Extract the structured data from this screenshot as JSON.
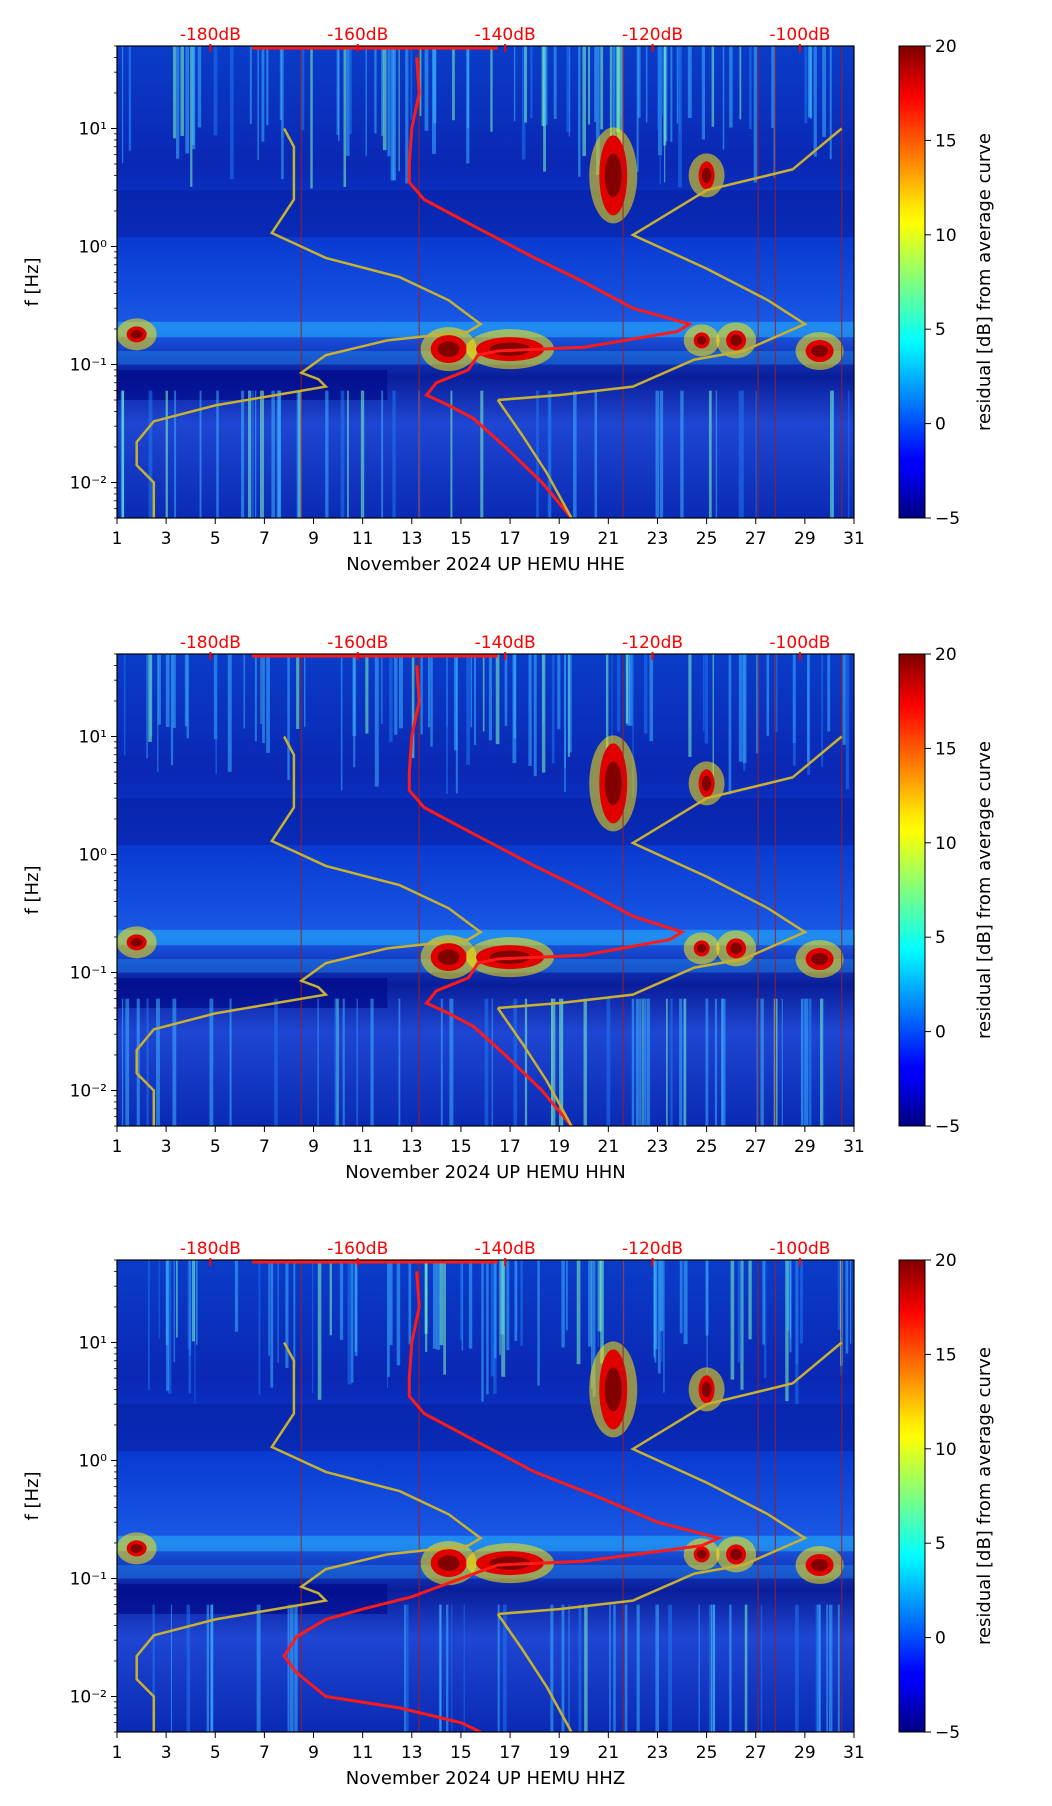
{
  "colors": {
    "red_curve": "#ff1a1a",
    "yellow_curve": "#c8b030",
    "db_label": "#ff0000",
    "axis": "#000000"
  },
  "chart_data": [
    {
      "type": "heatmap",
      "title": "",
      "xlabel": "November 2024 UP HEMU  HHE",
      "ylabel": "f [Hz]",
      "colorbar_label": "residual [dB] from average curve",
      "xlim": [
        1,
        31
      ],
      "ylim_hz": [
        0.005,
        50
      ],
      "yscale": "log",
      "x_ticks": [
        "1",
        "3",
        "5",
        "7",
        "9",
        "11",
        "13",
        "15",
        "17",
        "19",
        "21",
        "23",
        "25",
        "27",
        "29",
        "31"
      ],
      "y_ticks": [
        {
          "value": 0.01,
          "label": "10⁻²"
        },
        {
          "value": 0.1,
          "label": "10⁻¹"
        },
        {
          "value": 1,
          "label": "10⁰"
        },
        {
          "value": 10,
          "label": "10¹"
        }
      ],
      "db_ticks": [
        {
          "value": -180,
          "label": "-180dB"
        },
        {
          "value": -160,
          "label": "-160dB"
        },
        {
          "value": -140,
          "label": "-140dB"
        },
        {
          "value": -120,
          "label": "-120dB"
        },
        {
          "value": -100,
          "label": "-100dB"
        }
      ],
      "colorbar_ticks": [
        {
          "value": 20,
          "label": "20"
        },
        {
          "value": 15,
          "label": "15"
        },
        {
          "value": 10,
          "label": "10"
        },
        {
          "value": 5,
          "label": "5"
        },
        {
          "value": 0,
          "label": "0"
        },
        {
          "value": -5,
          "label": "−5"
        }
      ],
      "colorbar_range": [
        -5,
        20
      ],
      "series": [
        {
          "name": "average PSD curve",
          "color": "red",
          "points_day_hz": [
            [
              13.2,
              40
            ],
            [
              13.3,
              20
            ],
            [
              13.0,
              10
            ],
            [
              12.9,
              5
            ],
            [
              12.9,
              3.5
            ],
            [
              13.5,
              2.5
            ],
            [
              15.5,
              1.5
            ],
            [
              18.0,
              0.8
            ],
            [
              20.0,
              0.5
            ],
            [
              22.0,
              0.3
            ],
            [
              24.3,
              0.22
            ],
            [
              23.8,
              0.19
            ],
            [
              20.0,
              0.14
            ],
            [
              16.5,
              0.13
            ],
            [
              15.7,
              0.12
            ],
            [
              15.3,
              0.09
            ],
            [
              14.0,
              0.07
            ],
            [
              13.6,
              0.055
            ],
            [
              14.5,
              0.045
            ],
            [
              15.5,
              0.035
            ],
            [
              16.8,
              0.02
            ],
            [
              18.3,
              0.01
            ],
            [
              19.5,
              0.005
            ]
          ]
        },
        {
          "name": "low noise model",
          "color": "yellow",
          "points_day_hz": [
            [
              7.8,
              10
            ],
            [
              8.2,
              7
            ],
            [
              8.2,
              2.5
            ],
            [
              7.3,
              1.3
            ],
            [
              9.5,
              0.8
            ],
            [
              12.5,
              0.55
            ],
            [
              14.5,
              0.35
            ],
            [
              15.8,
              0.22
            ],
            [
              15.3,
              0.19
            ],
            [
              12.0,
              0.16
            ],
            [
              9.5,
              0.12
            ],
            [
              8.5,
              0.085
            ],
            [
              9.2,
              0.075
            ],
            [
              9.5,
              0.065
            ],
            [
              5.0,
              0.045
            ],
            [
              2.5,
              0.033
            ],
            [
              1.8,
              0.022
            ],
            [
              1.8,
              0.014
            ],
            [
              2.5,
              0.01
            ],
            [
              2.5,
              0.005
            ]
          ]
        },
        {
          "name": "high noise model",
          "color": "yellow",
          "points_day_hz": [
            [
              16.5,
              0.05
            ],
            [
              19.0,
              0.055
            ],
            [
              22.0,
              0.065
            ],
            [
              24.5,
              0.11
            ],
            [
              26.5,
              0.13
            ],
            [
              29.0,
              0.22
            ],
            [
              27.5,
              0.35
            ],
            [
              25.0,
              0.65
            ],
            [
              22.0,
              1.25
            ],
            [
              25.0,
              3.0
            ],
            [
              28.5,
              4.5
            ],
            [
              30.5,
              10
            ]
          ]
        },
        {
          "name": "low noise model tail",
          "color": "yellow",
          "points_day_hz": [
            [
              16.5,
              0.05
            ],
            [
              17.5,
              0.025
            ],
            [
              18.5,
              0.012
            ],
            [
              19.5,
              0.005
            ]
          ]
        }
      ]
    },
    {
      "type": "heatmap",
      "title": "",
      "xlabel": "November 2024 UP HEMU  HHN",
      "ylabel": "f [Hz]",
      "colorbar_label": "residual [dB] from average curve",
      "xlim": [
        1,
        31
      ],
      "ylim_hz": [
        0.005,
        50
      ],
      "yscale": "log",
      "x_ticks": [
        "1",
        "3",
        "5",
        "7",
        "9",
        "11",
        "13",
        "15",
        "17",
        "19",
        "21",
        "23",
        "25",
        "27",
        "29",
        "31"
      ],
      "y_ticks": [
        {
          "value": 0.01,
          "label": "10⁻²"
        },
        {
          "value": 0.1,
          "label": "10⁻¹"
        },
        {
          "value": 1,
          "label": "10⁰"
        },
        {
          "value": 10,
          "label": "10¹"
        }
      ],
      "db_ticks": [
        {
          "value": -180,
          "label": "-180dB"
        },
        {
          "value": -160,
          "label": "-160dB"
        },
        {
          "value": -140,
          "label": "-140dB"
        },
        {
          "value": -120,
          "label": "-120dB"
        },
        {
          "value": -100,
          "label": "-100dB"
        }
      ],
      "colorbar_ticks": [
        {
          "value": 20,
          "label": "20"
        },
        {
          "value": 15,
          "label": "15"
        },
        {
          "value": 10,
          "label": "10"
        },
        {
          "value": 5,
          "label": "5"
        },
        {
          "value": 0,
          "label": "0"
        },
        {
          "value": -5,
          "label": "−5"
        }
      ],
      "colorbar_range": [
        -5,
        20
      ],
      "series": [
        {
          "name": "average PSD curve",
          "color": "red",
          "points_day_hz": [
            [
              13.2,
              40
            ],
            [
              13.3,
              20
            ],
            [
              13.0,
              10
            ],
            [
              12.9,
              5
            ],
            [
              12.9,
              3.5
            ],
            [
              13.5,
              2.5
            ],
            [
              15.5,
              1.5
            ],
            [
              18.0,
              0.8
            ],
            [
              20.0,
              0.5
            ],
            [
              22.0,
              0.3
            ],
            [
              24.0,
              0.22
            ],
            [
              23.5,
              0.19
            ],
            [
              20.0,
              0.14
            ],
            [
              16.5,
              0.13
            ],
            [
              15.7,
              0.12
            ],
            [
              15.3,
              0.09
            ],
            [
              14.0,
              0.07
            ],
            [
              13.6,
              0.055
            ],
            [
              14.5,
              0.045
            ],
            [
              15.5,
              0.035
            ],
            [
              16.8,
              0.02
            ],
            [
              18.3,
              0.01
            ],
            [
              19.5,
              0.005
            ]
          ]
        },
        {
          "name": "low noise model",
          "color": "yellow",
          "points_day_hz": [
            [
              7.8,
              10
            ],
            [
              8.2,
              7
            ],
            [
              8.2,
              2.5
            ],
            [
              7.3,
              1.3
            ],
            [
              9.5,
              0.8
            ],
            [
              12.5,
              0.55
            ],
            [
              14.5,
              0.35
            ],
            [
              15.8,
              0.22
            ],
            [
              15.3,
              0.19
            ],
            [
              12.0,
              0.16
            ],
            [
              9.5,
              0.12
            ],
            [
              8.5,
              0.085
            ],
            [
              9.2,
              0.075
            ],
            [
              9.5,
              0.065
            ],
            [
              5.0,
              0.045
            ],
            [
              2.5,
              0.033
            ],
            [
              1.8,
              0.022
            ],
            [
              1.8,
              0.014
            ],
            [
              2.5,
              0.01
            ],
            [
              2.5,
              0.005
            ]
          ]
        },
        {
          "name": "high noise model",
          "color": "yellow",
          "points_day_hz": [
            [
              16.5,
              0.05
            ],
            [
              19.0,
              0.055
            ],
            [
              22.0,
              0.065
            ],
            [
              24.5,
              0.11
            ],
            [
              26.5,
              0.13
            ],
            [
              29.0,
              0.22
            ],
            [
              27.5,
              0.35
            ],
            [
              25.0,
              0.65
            ],
            [
              22.0,
              1.25
            ],
            [
              25.0,
              3.0
            ],
            [
              28.5,
              4.5
            ],
            [
              30.5,
              10
            ]
          ]
        },
        {
          "name": "low noise model tail",
          "color": "yellow",
          "points_day_hz": [
            [
              16.5,
              0.05
            ],
            [
              17.5,
              0.025
            ],
            [
              18.5,
              0.012
            ],
            [
              19.5,
              0.005
            ]
          ]
        }
      ]
    },
    {
      "type": "heatmap",
      "title": "",
      "xlabel": "November 2024 UP HEMU  HHZ",
      "ylabel": "f [Hz]",
      "colorbar_label": "residual [dB] from average curve",
      "xlim": [
        1,
        31
      ],
      "ylim_hz": [
        0.005,
        50
      ],
      "yscale": "log",
      "x_ticks": [
        "1",
        "3",
        "5",
        "7",
        "9",
        "11",
        "13",
        "15",
        "17",
        "19",
        "21",
        "23",
        "25",
        "27",
        "29",
        "31"
      ],
      "y_ticks": [
        {
          "value": 0.01,
          "label": "10⁻²"
        },
        {
          "value": 0.1,
          "label": "10⁻¹"
        },
        {
          "value": 1,
          "label": "10⁰"
        },
        {
          "value": 10,
          "label": "10¹"
        }
      ],
      "db_ticks": [
        {
          "value": -180,
          "label": "-180dB"
        },
        {
          "value": -160,
          "label": "-160dB"
        },
        {
          "value": -140,
          "label": "-140dB"
        },
        {
          "value": -120,
          "label": "-120dB"
        },
        {
          "value": -100,
          "label": "-100dB"
        }
      ],
      "colorbar_ticks": [
        {
          "value": 20,
          "label": "20"
        },
        {
          "value": 15,
          "label": "15"
        },
        {
          "value": 10,
          "label": "10"
        },
        {
          "value": 5,
          "label": "5"
        },
        {
          "value": 0,
          "label": "0"
        },
        {
          "value": -5,
          "label": "−5"
        }
      ],
      "colorbar_range": [
        -5,
        20
      ],
      "series": [
        {
          "name": "average PSD curve",
          "color": "red",
          "points_day_hz": [
            [
              13.2,
              40
            ],
            [
              13.3,
              20
            ],
            [
              13.0,
              10
            ],
            [
              12.9,
              5
            ],
            [
              12.9,
              3.5
            ],
            [
              13.5,
              2.5
            ],
            [
              15.5,
              1.5
            ],
            [
              18.0,
              0.8
            ],
            [
              20.5,
              0.5
            ],
            [
              23.0,
              0.3
            ],
            [
              25.5,
              0.22
            ],
            [
              24.8,
              0.19
            ],
            [
              20.0,
              0.14
            ],
            [
              16.5,
              0.13
            ],
            [
              15.0,
              0.1
            ],
            [
              13.0,
              0.07
            ],
            [
              11.0,
              0.055
            ],
            [
              9.5,
              0.045
            ],
            [
              8.3,
              0.032
            ],
            [
              7.8,
              0.022
            ],
            [
              8.3,
              0.016
            ],
            [
              9.5,
              0.01
            ],
            [
              12.5,
              0.008
            ],
            [
              15.0,
              0.006
            ],
            [
              15.8,
              0.005
            ]
          ]
        },
        {
          "name": "low noise model",
          "color": "yellow",
          "points_day_hz": [
            [
              7.8,
              10
            ],
            [
              8.2,
              7
            ],
            [
              8.2,
              2.5
            ],
            [
              7.3,
              1.3
            ],
            [
              9.5,
              0.8
            ],
            [
              12.5,
              0.55
            ],
            [
              14.5,
              0.35
            ],
            [
              15.8,
              0.22
            ],
            [
              15.3,
              0.19
            ],
            [
              12.0,
              0.16
            ],
            [
              9.5,
              0.12
            ],
            [
              8.5,
              0.085
            ],
            [
              9.2,
              0.075
            ],
            [
              9.5,
              0.065
            ],
            [
              5.0,
              0.045
            ],
            [
              2.5,
              0.033
            ],
            [
              1.8,
              0.022
            ],
            [
              1.8,
              0.014
            ],
            [
              2.5,
              0.01
            ],
            [
              2.5,
              0.005
            ]
          ]
        },
        {
          "name": "high noise model",
          "color": "yellow",
          "points_day_hz": [
            [
              16.5,
              0.05
            ],
            [
              19.0,
              0.055
            ],
            [
              22.0,
              0.065
            ],
            [
              24.5,
              0.11
            ],
            [
              26.5,
              0.13
            ],
            [
              29.0,
              0.22
            ],
            [
              27.5,
              0.35
            ],
            [
              25.0,
              0.65
            ],
            [
              22.0,
              1.25
            ],
            [
              25.0,
              3.0
            ],
            [
              28.5,
              4.5
            ],
            [
              30.5,
              10
            ]
          ]
        },
        {
          "name": "low noise model tail",
          "color": "yellow",
          "points_day_hz": [
            [
              16.5,
              0.05
            ],
            [
              17.5,
              0.025
            ],
            [
              18.5,
              0.012
            ],
            [
              19.5,
              0.005
            ]
          ]
        }
      ]
    }
  ]
}
